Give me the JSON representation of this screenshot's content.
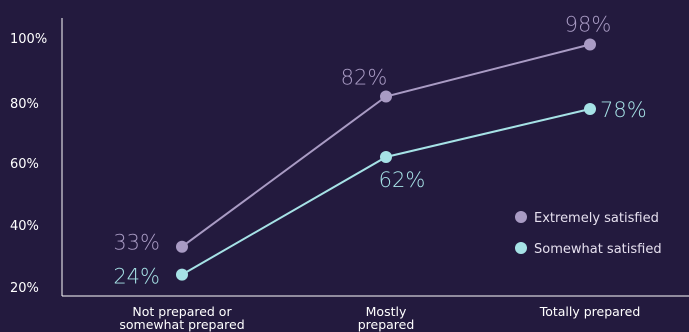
{
  "chart_data": {
    "type": "line",
    "categories": [
      "Not prepared or somewhat prepared",
      "Mostly prepared",
      "Totally prepared"
    ],
    "category_lines": [
      [
        "Not prepared or",
        "somewhat prepared"
      ],
      [
        "Mostly",
        "prepared"
      ],
      [
        "Totally prepared"
      ]
    ],
    "y_ticks": [
      "20%",
      "40%",
      "60%",
      "80%",
      "100%"
    ],
    "y_tick_values": [
      20,
      40,
      60,
      80,
      100
    ],
    "ylim": [
      20,
      100
    ],
    "title": "",
    "xlabel": "",
    "ylabel": "",
    "grid": false,
    "legend_position": "bottom-right",
    "series": [
      {
        "name": "Extremely satisfied",
        "values": [
          33,
          82,
          98
        ],
        "labels": [
          "33%",
          "82%",
          "98%"
        ],
        "color": "#a99bc4"
      },
      {
        "name": "Somewhat satisfied",
        "values": [
          24,
          62,
          78
        ],
        "labels": [
          "24%",
          "62%",
          "78%"
        ],
        "color": "#a6e2e6"
      }
    ]
  }
}
